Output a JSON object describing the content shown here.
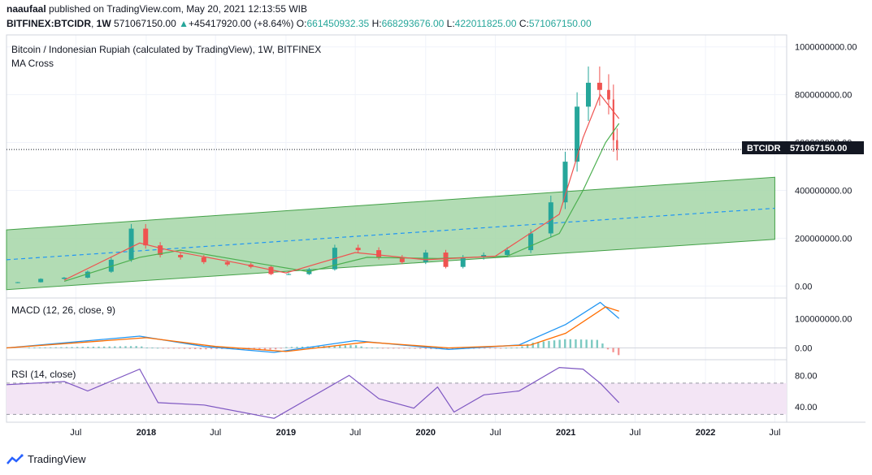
{
  "header": {
    "author": "naaufaal",
    "published_line": "published on TradingView.com, May 20, 2021 12:13:55 WIB",
    "symbol": "BITFINEX:BTCIDR",
    "interval": "1W",
    "price": "571067150.00",
    "change": "+45417920.00 (+8.64%)",
    "o_label": "O:",
    "o": "661450932.35",
    "h_label": "H:",
    "h": "668293676.00",
    "l_label": "L:",
    "l": "422011825.00",
    "c_label": "C:",
    "c": "571067150.00"
  },
  "main_pane": {
    "title": "Bitcoin / Indonesian Rupiah (calculated by TradingView), 1W, BITFINEX",
    "indicator": "MA Cross",
    "price_tag_symbol": "BTCIDR",
    "price_tag_value": "571067150.00"
  },
  "macd_pane": {
    "title": "MACD (12, 26, close, 9)"
  },
  "rsi_pane": {
    "title": "RSI (14, close)"
  },
  "footer": {
    "brand": "TradingView"
  },
  "colors": {
    "up": "#26a69a",
    "down": "#ef5350",
    "channel_fill": "#a5d6a7",
    "channel_line": "#43a047",
    "midline": "#2196f3",
    "ma_fast": "#ef5350",
    "ma_slow": "#4caf50",
    "macd": "#2196f3",
    "signal": "#ff6d00",
    "rsi": "#7e57c2",
    "rsi_band": "#f3e5f5"
  },
  "chart_data": [
    {
      "type": "candlestick",
      "title": "Bitcoin / Indonesian Rupiah (calculated by TradingView), 1W, BITFINEX",
      "y_ticks": [
        0,
        200000000,
        400000000,
        600000000,
        800000000,
        1000000000
      ],
      "y_tick_labels": [
        "0.00",
        "200000000.00",
        "400000000.00",
        "600000000.00",
        "800000000.00",
        "1000000000.00"
      ],
      "ylim": [
        -50000000,
        1050000000
      ],
      "x_ticks": [
        "Jul",
        "2018",
        "Jul",
        "2019",
        "Jul",
        "2020",
        "Jul",
        "2021",
        "Jul",
        "2022",
        "Jul"
      ],
      "x_tick_dates": [
        "2017-07-01",
        "2018-01-01",
        "2018-07-01",
        "2019-01-01",
        "2019-07-01",
        "2020-01-01",
        "2020-07-01",
        "2021-01-01",
        "2021-07-01",
        "2022-01-01",
        "2022-07-01"
      ],
      "x_range": [
        "2017-01-01",
        "2022-08-01"
      ],
      "last_close": 571067150,
      "close_series": [
        [
          "2017-01-01",
          13000000
        ],
        [
          "2017-03-01",
          16000000
        ],
        [
          "2017-05-01",
          30000000
        ],
        [
          "2017-07-01",
          35000000
        ],
        [
          "2017-09-01",
          60000000
        ],
        [
          "2017-11-01",
          110000000
        ],
        [
          "2017-12-15",
          240000000
        ],
        [
          "2018-01-15",
          170000000
        ],
        [
          "2018-03-01",
          130000000
        ],
        [
          "2018-05-01",
          120000000
        ],
        [
          "2018-07-01",
          100000000
        ],
        [
          "2018-09-01",
          90000000
        ],
        [
          "2018-11-01",
          80000000
        ],
        [
          "2018-12-15",
          50000000
        ],
        [
          "2019-02-01",
          50000000
        ],
        [
          "2019-04-01",
          70000000
        ],
        [
          "2019-06-15",
          160000000
        ],
        [
          "2019-08-01",
          150000000
        ],
        [
          "2019-10-01",
          120000000
        ],
        [
          "2019-12-01",
          100000000
        ],
        [
          "2020-02-01",
          140000000
        ],
        [
          "2020-03-15",
          80000000
        ],
        [
          "2020-05-01",
          120000000
        ],
        [
          "2020-07-01",
          130000000
        ],
        [
          "2020-09-01",
          150000000
        ],
        [
          "2020-11-01",
          220000000
        ],
        [
          "2020-12-15",
          350000000
        ],
        [
          "2021-01-15",
          520000000
        ],
        [
          "2021-02-15",
          750000000
        ],
        [
          "2021-03-15",
          850000000
        ],
        [
          "2021-04-15",
          820000000
        ],
        [
          "2021-05-01",
          780000000
        ],
        [
          "2021-05-10",
          610000000
        ],
        [
          "2021-05-20",
          571067150
        ]
      ],
      "channel": {
        "upper": [
          [
            "2017-01-01",
            235000000
          ],
          [
            "2022-07-01",
            455000000
          ]
        ],
        "lower": [
          [
            "2017-01-01",
            -15000000
          ],
          [
            "2022-07-01",
            195000000
          ]
        ]
      },
      "ma_fast": [
        [
          "2017-06-01",
          25000000
        ],
        [
          "2017-12-15",
          180000000
        ],
        [
          "2018-03-01",
          150000000
        ],
        [
          "2018-09-01",
          95000000
        ],
        [
          "2019-01-01",
          55000000
        ],
        [
          "2019-07-01",
          140000000
        ],
        [
          "2020-01-01",
          110000000
        ],
        [
          "2020-07-01",
          125000000
        ],
        [
          "2020-12-15",
          300000000
        ],
        [
          "2021-02-15",
          620000000
        ],
        [
          "2021-04-01",
          800000000
        ],
        [
          "2021-05-20",
          700000000
        ]
      ],
      "ma_slow": [
        [
          "2017-06-01",
          20000000
        ],
        [
          "2017-12-15",
          120000000
        ],
        [
          "2018-04-01",
          150000000
        ],
        [
          "2018-10-01",
          100000000
        ],
        [
          "2019-03-01",
          60000000
        ],
        [
          "2019-08-01",
          120000000
        ],
        [
          "2020-02-01",
          115000000
        ],
        [
          "2020-08-01",
          125000000
        ],
        [
          "2020-12-15",
          220000000
        ],
        [
          "2021-02-15",
          400000000
        ],
        [
          "2021-04-15",
          600000000
        ],
        [
          "2021-05-20",
          680000000
        ]
      ]
    },
    {
      "type": "line",
      "title": "MACD (12, 26, close, 9)",
      "y_ticks": [
        0,
        100000000
      ],
      "y_tick_labels": [
        "0.00",
        "100000000.00"
      ],
      "ylim": [
        -40000000,
        170000000
      ],
      "series": [
        {
          "values": [
            [
              "2017-01-01",
              0
            ],
            [
              "2017-12-15",
              40000000
            ],
            [
              "2018-06-01",
              5000000
            ],
            [
              "2018-12-01",
              -15000000
            ],
            [
              "2019-07-01",
              25000000
            ],
            [
              "2020-03-01",
              -5000000
            ],
            [
              "2020-09-01",
              10000000
            ],
            [
              "2021-01-01",
              80000000
            ],
            [
              "2021-04-01",
              155000000
            ],
            [
              "2021-05-20",
              100000000
            ]
          ]
        },
        {
          "values": [
            [
              "2017-01-01",
              0
            ],
            [
              "2018-01-01",
              35000000
            ],
            [
              "2018-07-01",
              5000000
            ],
            [
              "2019-01-01",
              -12000000
            ],
            [
              "2019-08-01",
              20000000
            ],
            [
              "2020-03-01",
              0
            ],
            [
              "2020-10-01",
              10000000
            ],
            [
              "2021-01-01",
              50000000
            ],
            [
              "2021-04-15",
              140000000
            ],
            [
              "2021-05-20",
              125000000
            ]
          ]
        }
      ]
    },
    {
      "type": "line",
      "title": "RSI (14, close)",
      "y_ticks": [
        40,
        80
      ],
      "y_tick_labels": [
        "40.00",
        "80.00"
      ],
      "ylim": [
        20,
        100
      ],
      "band": [
        30,
        70
      ],
      "series": [
        {
          "values": [
            [
              "2017-01-01",
              68
            ],
            [
              "2017-06-01",
              72
            ],
            [
              "2017-08-01",
              60
            ],
            [
              "2017-12-15",
              88
            ],
            [
              "2018-02-01",
              45
            ],
            [
              "2018-06-01",
              42
            ],
            [
              "2018-12-01",
              25
            ],
            [
              "2019-06-15",
              80
            ],
            [
              "2019-09-01",
              50
            ],
            [
              "2019-12-01",
              38
            ],
            [
              "2020-02-01",
              65
            ],
            [
              "2020-03-15",
              33
            ],
            [
              "2020-06-01",
              55
            ],
            [
              "2020-09-01",
              60
            ],
            [
              "2020-12-15",
              90
            ],
            [
              "2021-02-15",
              88
            ],
            [
              "2021-04-01",
              70
            ],
            [
              "2021-05-20",
              45
            ]
          ]
        }
      ]
    }
  ]
}
